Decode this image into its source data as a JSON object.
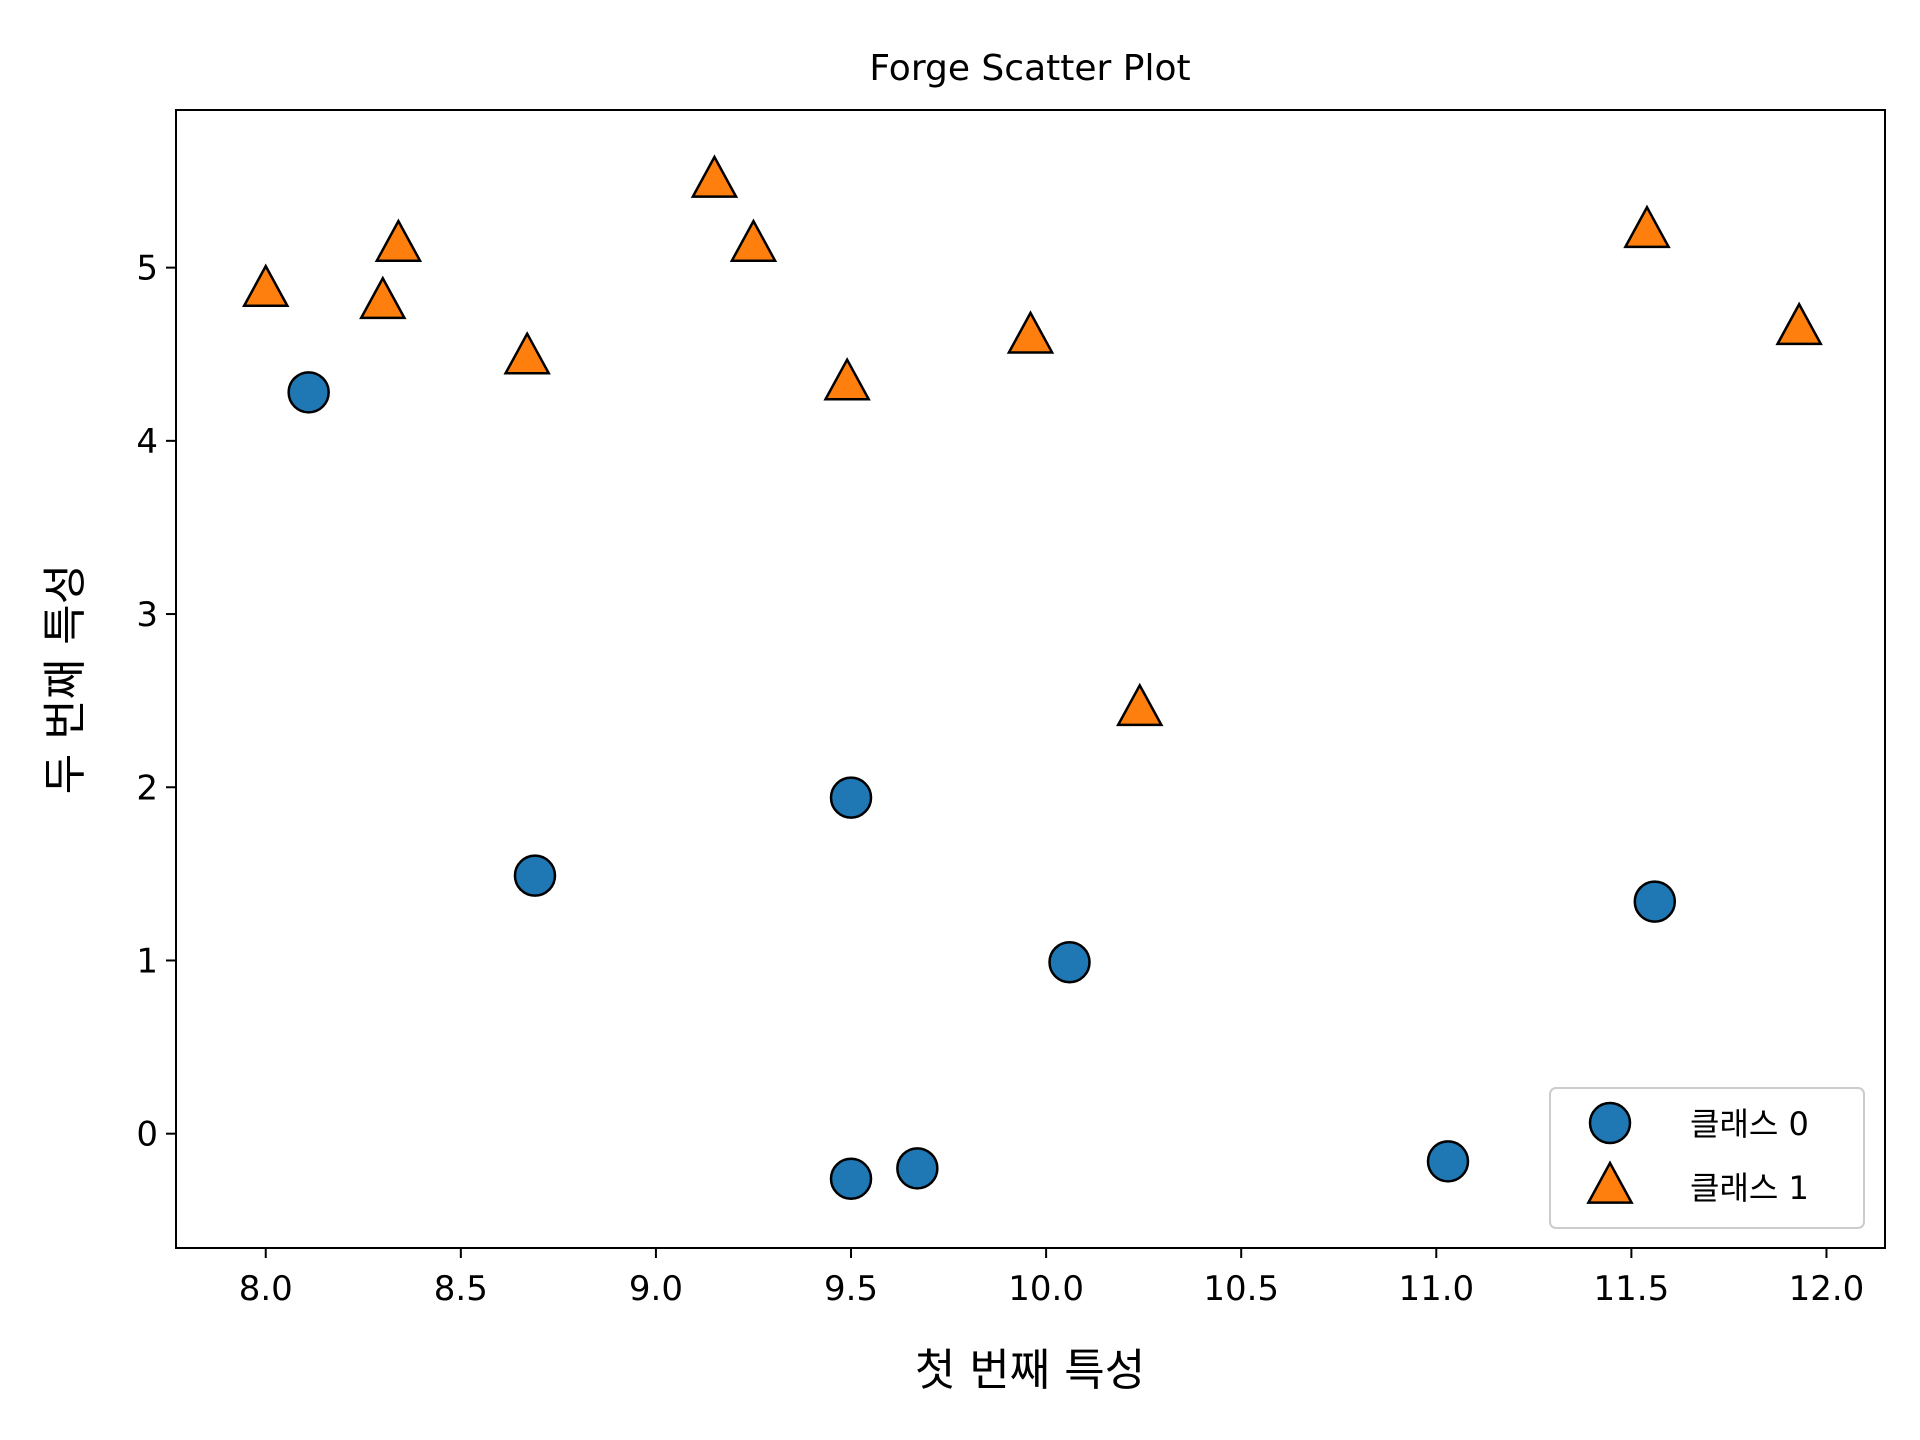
{
  "chart_data": {
    "type": "scatter",
    "title": "Forge Scatter Plot",
    "xlabel": "첫 번째 특성",
    "ylabel": "두 번째 특성",
    "xlim": [
      7.77,
      12.15
    ],
    "ylim": [
      -0.66,
      5.91
    ],
    "xticks": [
      "8.0",
      "8.5",
      "9.0",
      "9.5",
      "10.0",
      "10.5",
      "11.0",
      "11.5",
      "12.0"
    ],
    "xtick_values": [
      8.0,
      8.5,
      9.0,
      9.5,
      10.0,
      10.5,
      11.0,
      11.5,
      12.0
    ],
    "yticks": [
      "0",
      "1",
      "2",
      "3",
      "4",
      "5"
    ],
    "ytick_values": [
      0,
      1,
      2,
      3,
      4,
      5
    ],
    "grid": false,
    "legend_position": "bottom-right",
    "series": [
      {
        "name": "클래스 0",
        "marker": "circle",
        "color": "#1f77b4",
        "points": [
          [
            8.11,
            4.28
          ],
          [
            8.69,
            1.49
          ],
          [
            9.5,
            1.94
          ],
          [
            9.5,
            -0.26
          ],
          [
            9.67,
            -0.2
          ],
          [
            10.06,
            0.99
          ],
          [
            11.03,
            -0.16
          ],
          [
            11.56,
            1.34
          ]
        ]
      },
      {
        "name": "클래스 1",
        "marker": "triangle",
        "color": "#ff7f0e",
        "points": [
          [
            8.0,
            4.87
          ],
          [
            8.3,
            4.8
          ],
          [
            8.34,
            5.13
          ],
          [
            8.67,
            4.48
          ],
          [
            9.15,
            5.5
          ],
          [
            9.25,
            5.13
          ],
          [
            9.49,
            4.33
          ],
          [
            9.96,
            4.6
          ],
          [
            10.24,
            2.45
          ],
          [
            11.54,
            5.21
          ],
          [
            11.93,
            4.65
          ]
        ]
      }
    ]
  }
}
